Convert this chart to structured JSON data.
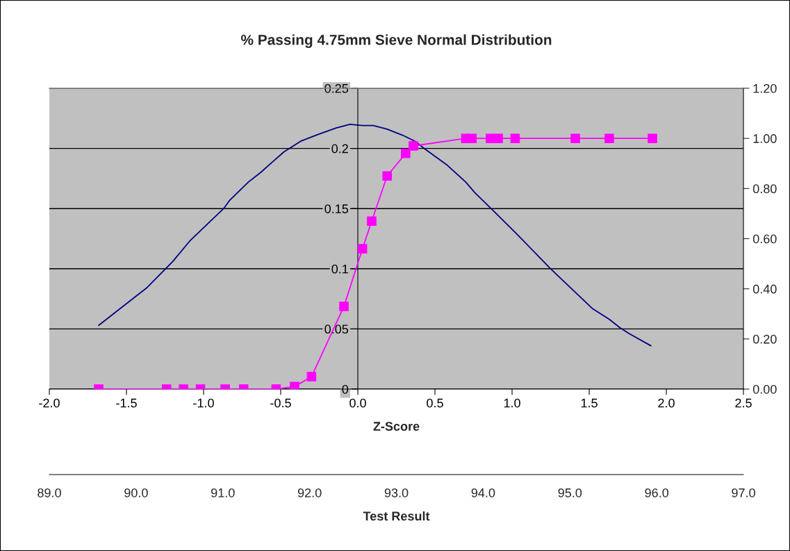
{
  "chart_data": {
    "type": "line",
    "title": "% Passing 4.75mm Sieve Normal Distribution",
    "xlabel": "Z-Score",
    "x2label": "Test Result",
    "xlim": [
      -2.0,
      2.5
    ],
    "xticks": [
      {
        "value": -2.0,
        "label": "-2.0"
      },
      {
        "value": -1.5,
        "label": "-1.5"
      },
      {
        "value": -1.0,
        "label": "-1.0"
      },
      {
        "value": -0.5,
        "label": "-0.5"
      },
      {
        "value": 0.0,
        "label": "0.0"
      },
      {
        "value": 0.5,
        "label": "0.5"
      },
      {
        "value": 1.0,
        "label": "1.0"
      },
      {
        "value": 1.5,
        "label": "1.5"
      },
      {
        "value": 2.0,
        "label": "2.0"
      },
      {
        "value": 2.5,
        "label": "2.5"
      }
    ],
    "x2lim": [
      89.0,
      97.0
    ],
    "x2ticks": [
      {
        "value": 89.0,
        "label": "89.0"
      },
      {
        "value": 90.0,
        "label": "90.0"
      },
      {
        "value": 91.0,
        "label": "91.0"
      },
      {
        "value": 92.0,
        "label": "92.0"
      },
      {
        "value": 93.0,
        "label": "93.0"
      },
      {
        "value": 94.0,
        "label": "94.0"
      },
      {
        "value": 95.0,
        "label": "95.0"
      },
      {
        "value": 96.0,
        "label": "96.0"
      },
      {
        "value": 97.0,
        "label": "97.0"
      }
    ],
    "ylim": [
      0,
      0.25
    ],
    "yticks": [
      0,
      0.05,
      0.1,
      0.15,
      0.2,
      0.25
    ],
    "y2lim": [
      0,
      1.2
    ],
    "y2ticks": [
      {
        "value": 0,
        "label": "0.00"
      },
      {
        "value": 0.2,
        "label": "0.20"
      },
      {
        "value": 0.4,
        "label": "0.40"
      },
      {
        "value": 0.6,
        "label": "0.60"
      },
      {
        "value": 0.8,
        "label": "0.80"
      },
      {
        "value": 1.0,
        "label": "1.00"
      },
      {
        "value": 1.2,
        "label": "1.20"
      }
    ],
    "grid": "y",
    "legend": false,
    "series": [
      {
        "color": "#000080",
        "marker": "none",
        "line_style": "solid",
        "x": [
          -1.68,
          -1.52,
          -1.37,
          -1.2,
          -1.09,
          -0.87,
          -0.83,
          -0.71,
          -0.63,
          -0.56,
          -0.48,
          -0.37,
          -0.25,
          -0.14,
          -0.05,
          0.03,
          0.1,
          0.19,
          0.29,
          0.37,
          0.44,
          0.58,
          0.7,
          0.76,
          0.88,
          1.03,
          1.25,
          1.43,
          1.52,
          1.63,
          1.7,
          1.76,
          1.9
        ],
        "values": [
          0.053,
          0.069,
          0.084,
          0.106,
          0.123,
          0.15,
          0.157,
          0.172,
          0.18,
          0.188,
          0.197,
          0.206,
          0.212,
          0.217,
          0.22,
          0.219,
          0.219,
          0.216,
          0.211,
          0.206,
          0.199,
          0.186,
          0.172,
          0.163,
          0.148,
          0.129,
          0.1,
          0.078,
          0.067,
          0.058,
          0.051,
          0.046,
          0.036
        ]
      },
      {
        "color": "#ff00ff",
        "marker": "square",
        "line_style": "solid",
        "axis": "y2",
        "x": [
          -1.68,
          -1.24,
          -1.13,
          -1.02,
          -0.86,
          -0.74,
          -0.53,
          -0.41,
          -0.3,
          -0.09,
          0.03,
          0.09,
          0.19,
          0.31,
          0.36,
          0.7,
          0.74,
          0.86,
          0.91,
          1.02,
          1.41,
          1.63,
          1.91
        ],
        "values": [
          0,
          0,
          0,
          0,
          0,
          0,
          0,
          0.01,
          0.05,
          0.33,
          0.56,
          0.67,
          0.85,
          0.94,
          0.97,
          1.0,
          1.0,
          1.0,
          1.0,
          1.0,
          1.0,
          1.0,
          1.0
        ]
      }
    ]
  }
}
